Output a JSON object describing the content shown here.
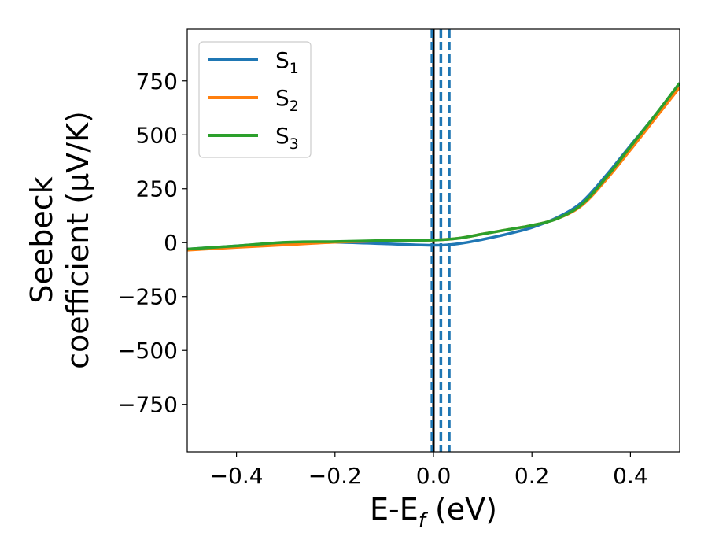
{
  "chart_data": {
    "type": "line",
    "xlabel": "E-E",
    "xlabel_sub": "f",
    "xlabel_unit": " (eV)",
    "ylabel_line1": "Seebeck",
    "ylabel_line2": "coefficient  (μV/K)",
    "xlim": [
      -0.5,
      0.5
    ],
    "ylim": [
      -970,
      990
    ],
    "xticks": [
      -0.4,
      -0.2,
      0.0,
      0.2,
      0.4
    ],
    "xtick_labels": [
      "−0.4",
      "−0.2",
      "0.0",
      "0.2",
      "0.4"
    ],
    "yticks": [
      750,
      500,
      250,
      0,
      -250,
      -500,
      -750
    ],
    "ytick_labels": [
      "750",
      "500",
      "250",
      "0",
      "−250",
      "−500",
      "−750"
    ],
    "legend_position": "top-left",
    "grid": false,
    "vlines": [
      {
        "x": 0.0,
        "style": "solid",
        "color": "#000000"
      },
      {
        "x": -0.003,
        "style": "dashed",
        "color": "#1f77b4"
      },
      {
        "x": 0.015,
        "style": "dashed",
        "color": "#1f77b4"
      },
      {
        "x": 0.032,
        "style": "dashed",
        "color": "#1f77b4"
      }
    ],
    "series": [
      {
        "name": "S",
        "sub": "1",
        "color": "#1f77b4",
        "x": [
          -0.5,
          -0.4,
          -0.3,
          -0.2,
          -0.1,
          0.0,
          0.05,
          0.1,
          0.15,
          0.2,
          0.25,
          0.3,
          0.35,
          0.4,
          0.45,
          0.5
        ],
        "y": [
          -30,
          -15,
          0,
          2,
          -5,
          -12,
          -5,
          15,
          40,
          70,
          115,
          185,
          310,
          450,
          590,
          740
        ]
      },
      {
        "name": "S",
        "sub": "2",
        "color": "#ff7f0e",
        "x": [
          -0.5,
          -0.4,
          -0.3,
          -0.2,
          -0.1,
          0.0,
          0.05,
          0.1,
          0.15,
          0.2,
          0.25,
          0.3,
          0.35,
          0.4,
          0.45,
          0.5
        ],
        "y": [
          -35,
          -22,
          -10,
          2,
          8,
          12,
          20,
          40,
          60,
          80,
          110,
          170,
          290,
          430,
          575,
          720
        ]
      },
      {
        "name": "S",
        "sub": "3",
        "color": "#2ca02c",
        "x": [
          -0.5,
          -0.4,
          -0.3,
          -0.2,
          -0.1,
          0.0,
          0.05,
          0.1,
          0.15,
          0.2,
          0.25,
          0.3,
          0.35,
          0.4,
          0.45,
          0.5
        ],
        "y": [
          -30,
          -15,
          2,
          5,
          10,
          12,
          20,
          40,
          60,
          80,
          110,
          175,
          300,
          445,
          590,
          740
        ]
      }
    ]
  }
}
